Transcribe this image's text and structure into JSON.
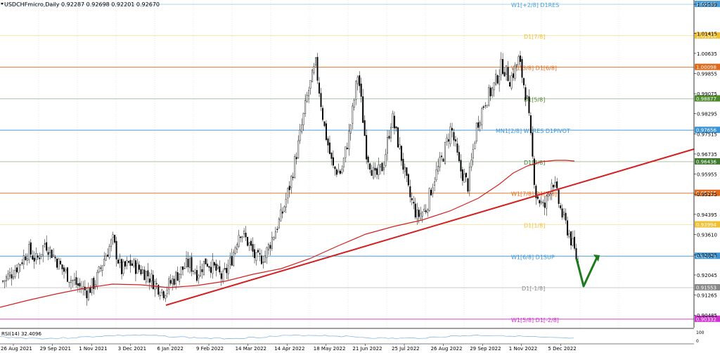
{
  "header": {
    "symbol_info": "USDCHFmicro,Daily  0.92287 0.92698 0.92201 0.92670"
  },
  "rsi": {
    "label": "RSI(14) 32.4096",
    "scale_top": "100",
    "scale_bottom": "0"
  },
  "chart_data": {
    "type": "candlestick",
    "symbol": "USDCHFmicro",
    "timeframe": "Daily",
    "ohlc_last": {
      "open": 0.92287,
      "high": 0.92698,
      "low": 0.92201,
      "close": 0.9267
    },
    "price_axis_ticks": [
      "1.02539",
      "1.01415",
      "1.00635",
      "0.99855",
      "0.99075",
      "0.98295",
      "0.97515",
      "0.96735",
      "0.95955",
      "0.95175",
      "0.94395",
      "0.93610",
      "0.92825",
      "0.92045",
      "0.91265",
      "0.90485"
    ],
    "time_axis_labels": [
      "26 Aug 2021",
      "29 Sep 2021",
      "1 Nov 2021",
      "3 Dec 2021",
      "6 Jan 2022",
      "9 Feb 2022",
      "14 Mar 2022",
      "14 Apr 2022",
      "18 May 2022",
      "21 Jun 2022",
      "25 Jul 2022",
      "26 Aug 2022",
      "29 Sep 2022",
      "1 Nov 2022",
      "5 Dec 2022"
    ],
    "ylim": [
      0.9,
      1.0265
    ],
    "levels": [
      {
        "price": 1.02539,
        "label": "W1[+2/8] D1RES",
        "price_label": "1.02539",
        "color": "#4a9fd8"
      },
      {
        "price": 1.01318,
        "label": "D1[7/8]",
        "price_label": "1.01318",
        "color": "#f0c030"
      },
      {
        "price": 1.00098,
        "label": "W1[3/8] D1[6/8]",
        "price_label": "1.00098",
        "color": "#e06a1a"
      },
      {
        "price": 0.98877,
        "label": "D1[5/8]",
        "price_label": "0.98877",
        "color": "#4c8a2a"
      },
      {
        "price": 0.97656,
        "label": "MN1[2/8] W1RES D1PIVOT",
        "price_label": "0.97656",
        "color": "#3a94d6"
      },
      {
        "price": 0.96436,
        "label": "D1[3/8]",
        "price_label": "0.96436",
        "color": "#3f7a2e"
      },
      {
        "price": 0.95215,
        "label": "W1[7/8] D1[2/8]",
        "price_label": "0.95215",
        "color": "#e06a1a"
      },
      {
        "price": 0.93994,
        "label": "D1[1/8]",
        "price_label": "0.93994",
        "color": "#f0c030"
      },
      {
        "price": 0.92773,
        "label": "W1[6/8] D1SUP",
        "price_label": "0.92773",
        "color": "#3a94d6"
      },
      {
        "price": 0.91553,
        "label": "D1[-1/8]",
        "price_label": "0.91553",
        "color": "#8a8a8a"
      },
      {
        "price": 0.90332,
        "label": "W1[5/8] D1[-2/8]",
        "price_label": "0.90332",
        "color": "#d030d0"
      }
    ],
    "candles_weekly_approx": [
      {
        "date": "26 Aug 2021",
        "close": 0.918
      },
      {
        "date": "2 Sep 2021",
        "close": 0.921
      },
      {
        "date": "9 Sep 2021",
        "close": 0.925
      },
      {
        "date": "16 Sep 2021",
        "close": 0.93
      },
      {
        "date": "23 Sep 2021",
        "close": 0.926
      },
      {
        "date": "30 Sep 2021",
        "close": 0.933
      },
      {
        "date": "7 Oct 2021",
        "close": 0.928
      },
      {
        "date": "14 Oct 2021",
        "close": 0.923
      },
      {
        "date": "21 Oct 2021",
        "close": 0.919
      },
      {
        "date": "28 Oct 2021",
        "close": 0.916
      },
      {
        "date": "4 Nov 2021",
        "close": 0.914
      },
      {
        "date": "11 Nov 2021",
        "close": 0.918
      },
      {
        "date": "18 Nov 2021",
        "close": 0.927
      },
      {
        "date": "25 Nov 2021",
        "close": 0.934
      },
      {
        "date": "2 Dec 2021",
        "close": 0.922
      },
      {
        "date": "9 Dec 2021",
        "close": 0.925
      },
      {
        "date": "16 Dec 2021",
        "close": 0.923
      },
      {
        "date": "23 Dec 2021",
        "close": 0.921
      },
      {
        "date": "30 Dec 2021",
        "close": 0.917
      },
      {
        "date": "6 Jan 2022",
        "close": 0.914
      },
      {
        "date": "13 Jan 2022",
        "close": 0.918
      },
      {
        "date": "20 Jan 2022",
        "close": 0.922
      },
      {
        "date": "27 Jan 2022",
        "close": 0.925
      },
      {
        "date": "3 Feb 2022",
        "close": 0.921
      },
      {
        "date": "10 Feb 2022",
        "close": 0.926
      },
      {
        "date": "17 Feb 2022",
        "close": 0.923
      },
      {
        "date": "24 Feb 2022",
        "close": 0.919
      },
      {
        "date": "3 Mar 2022",
        "close": 0.926
      },
      {
        "date": "10 Mar 2022",
        "close": 0.938
      },
      {
        "date": "17 Mar 2022",
        "close": 0.933
      },
      {
        "date": "24 Mar 2022",
        "close": 0.926
      },
      {
        "date": "31 Mar 2022",
        "close": 0.928
      },
      {
        "date": "7 Apr 2022",
        "close": 0.936
      },
      {
        "date": "14 Apr 2022",
        "close": 0.944
      },
      {
        "date": "21 Apr 2022",
        "close": 0.956
      },
      {
        "date": "28 Apr 2022",
        "close": 0.972
      },
      {
        "date": "5 May 2022",
        "close": 0.99
      },
      {
        "date": "12 May 2022",
        "close": 1.002
      },
      {
        "date": "19 May 2022",
        "close": 0.978
      },
      {
        "date": "26 May 2022",
        "close": 0.962
      },
      {
        "date": "2 Jun 2022",
        "close": 0.96
      },
      {
        "date": "9 Jun 2022",
        "close": 0.976
      },
      {
        "date": "16 Jun 2022",
        "close": 0.999
      },
      {
        "date": "23 Jun 2022",
        "close": 0.968
      },
      {
        "date": "30 Jun 2022",
        "close": 0.958
      },
      {
        "date": "7 Jul 2022",
        "close": 0.963
      },
      {
        "date": "14 Jul 2022",
        "close": 0.982
      },
      {
        "date": "21 Jul 2022",
        "close": 0.968
      },
      {
        "date": "28 Jul 2022",
        "close": 0.952
      },
      {
        "date": "4 Aug 2022",
        "close": 0.943
      },
      {
        "date": "11 Aug 2022",
        "close": 0.946
      },
      {
        "date": "18 Aug 2022",
        "close": 0.958
      },
      {
        "date": "25 Aug 2022",
        "close": 0.966
      },
      {
        "date": "1 Sep 2022",
        "close": 0.978
      },
      {
        "date": "8 Sep 2022",
        "close": 0.962
      },
      {
        "date": "15 Sep 2022",
        "close": 0.955
      },
      {
        "date": "22 Sep 2022",
        "close": 0.978
      },
      {
        "date": "29 Sep 2022",
        "close": 0.988
      },
      {
        "date": "6 Oct 2022",
        "close": 0.993
      },
      {
        "date": "13 Oct 2022",
        "close": 1.002
      },
      {
        "date": "20 Oct 2022",
        "close": 0.996
      },
      {
        "date": "27 Oct 2022",
        "close": 1.004
      },
      {
        "date": "3 Nov 2022",
        "close": 0.988
      },
      {
        "date": "10 Nov 2022",
        "close": 0.952
      },
      {
        "date": "17 Nov 2022",
        "close": 0.946
      },
      {
        "date": "24 Nov 2022",
        "close": 0.958
      },
      {
        "date": "1 Dec 2022",
        "close": 0.945
      },
      {
        "date": "8 Dec 2022",
        "close": 0.936
      },
      {
        "date": "15 Dec 2022",
        "close": 0.925
      }
    ]
  }
}
